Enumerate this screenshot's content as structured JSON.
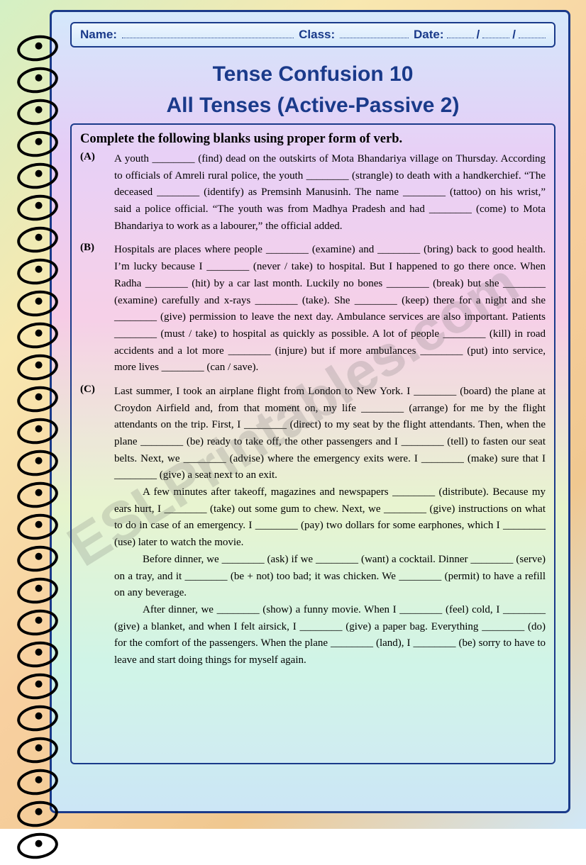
{
  "header": {
    "name_label": "Name:",
    "class_label": "Class:",
    "date_label": "Date:",
    "date_sep": "/"
  },
  "title_line1": "Tense Confusion 10",
  "title_line2": "All Tenses (Active-Passive 2)",
  "instruction": "Complete the following blanks using proper form of verb.",
  "watermark": "ESLPrintables.com",
  "items": [
    {
      "label": "(A)",
      "paragraphs": [
        "A youth ________ (find) dead on the outskirts of Mota Bhandariya village on Thursday. According to officials of Amreli rural police, the youth ________ (strangle) to death with a handkerchief. “The deceased ________ (identify) as Premsinh Manusinh. The name ________ (tattoo) on his wrist,” said a police official. “The youth was from Madhya Pradesh and had ________ (come) to Mota Bhandariya to work as a labourer,” the official added."
      ]
    },
    {
      "label": "(B)",
      "paragraphs": [
        "Hospitals are places where people ________ (examine) and ________ (bring) back to good health. I’m lucky because I ________ (never / take) to hospital. But I happened to go there once. When Radha ________ (hit) by a car last month. Luckily no bones ________ (break) but she ________ (examine) carefully and x-rays ________ (take). She ________ (keep) there for a night and she ________ (give) permission to leave the next day. Ambulance services are also important. Patients ________ (must / take) to hospital as quickly as possible. A lot of people ________ (kill) in road accidents and a lot more ________ (injure) but if more ambulances ________ (put) into service, more lives ________ (can / save)."
      ]
    },
    {
      "label": "(C)",
      "paragraphs": [
        "Last summer, I took an airplane flight from London to New York. I ________ (board) the plane at Croydon Airfield and, from that moment on, my life ________ (arrange) for me by the flight attendants on the trip. First, I ________ (direct) to my seat by the flight attendants. Then, when the plane ________ (be) ready to take off, the other passengers and I ________ (tell) to fasten our seat belts. Next, we ________ (advise) where the emergency exits were. I ________ (make) sure that I ________ (give) a seat next to an exit.",
        "A few minutes after takeoff, magazines and newspapers ________ (distribute). Because my ears hurt, I ________ (take) out some gum to chew. Next, we ________ (give) instructions on what to do in case of an emergency. I ________ (pay) two dollars for some earphones, which I ________ (use) later to watch the movie.",
        "Before dinner, we ________ (ask) if we ________ (want) a cocktail. Dinner ________ (serve) on a tray, and it ________ (be + not) too bad; it was chicken. We ________ (permit) to have a refill on any beverage.",
        "After dinner, we ________ (show) a funny movie. When I ________ (feel) cold, I ________ (give) a blanket, and when I felt airsick, I ________ (give) a paper bag. Everything ________ (do) for the comfort of the passengers. When the plane ________ (land), I ________ (be) sorry to have to leave and start doing things for myself again."
      ]
    }
  ]
}
